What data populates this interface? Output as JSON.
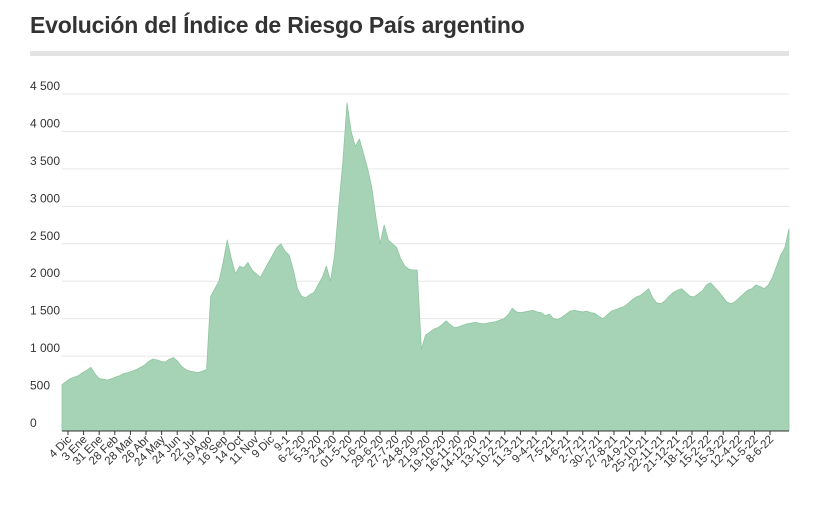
{
  "title": "Evolución del Índice de Riesgo País argentino",
  "colors": {
    "area": "#a6d3b5",
    "stroke": "#8fc5a1",
    "grid": "#e6e6e6",
    "axis": "#333333",
    "text": "#333333",
    "rule": "#e3e3e3"
  },
  "chart_data": {
    "type": "area",
    "title": "Evolución del Índice de Riesgo País argentino",
    "xlabel": "",
    "ylabel": "",
    "ylim": [
      0,
      4500
    ],
    "grid": true,
    "y_ticks": [
      0,
      500,
      1000,
      1500,
      2000,
      2500,
      3000,
      3500,
      4000,
      4500
    ],
    "y_tick_labels": [
      "0",
      "500",
      "1 000",
      "1 500",
      "2 000",
      "2 500",
      "3 000",
      "3 500",
      "4 000",
      "4 500"
    ],
    "x_tick_labels": [
      "4 Dic",
      "3 Ene",
      "31 Ene",
      "28 Feb",
      "28 Mar",
      "26 Abr",
      "24 May",
      "24 Jun",
      "22 Jul",
      "19 Ago",
      "16 Sep",
      "14 Oct",
      "11 Nov",
      "9 Dic",
      "9-1",
      "6-2-20",
      "5-3-20",
      "2-4-20",
      "01-5-20",
      "1-6-20",
      "29-6-20",
      "27-7-20",
      "24-8-20",
      "21-9-20",
      "19-10-20",
      "16-11-20",
      "14-12-20",
      "13-1-21",
      "10-2-21",
      "11-3-21",
      "9-4-21",
      "7-5-21",
      "4-6-21",
      "2-7-21",
      "30-7-21",
      "27-8-21",
      "24-9-21",
      "25-10-21",
      "22-11-21",
      "21-12-21",
      "18-1-22",
      "15-2-22",
      "15-3-22",
      "12-4-22",
      "11-5-22",
      "8-6-22"
    ],
    "series": [
      {
        "values": [
          620,
          660,
          700,
          720,
          740,
          780,
          810,
          850,
          760,
          700,
          690,
          680,
          700,
          720,
          740,
          770,
          780,
          800,
          820,
          850,
          880,
          930,
          960,
          950,
          930,
          920,
          960,
          980,
          930,
          860,
          820,
          800,
          790,
          780,
          800,
          820,
          1800,
          1900,
          2000,
          2250,
          2550,
          2300,
          2100,
          2200,
          2180,
          2250,
          2150,
          2100,
          2050,
          2150,
          2250,
          2350,
          2450,
          2500,
          2400,
          2350,
          2150,
          1900,
          1800,
          1780,
          1820,
          1850,
          1950,
          2050,
          2200,
          2000,
          2350,
          3000,
          3600,
          4380,
          4000,
          3800,
          3900,
          3700,
          3500,
          3250,
          2850,
          2500,
          2750,
          2550,
          2500,
          2450,
          2300,
          2200,
          2160,
          2150,
          2150,
          1090,
          1280,
          1320,
          1360,
          1380,
          1420,
          1470,
          1420,
          1380,
          1390,
          1410,
          1430,
          1440,
          1450,
          1440,
          1430,
          1440,
          1450,
          1460,
          1480,
          1500,
          1550,
          1640,
          1590,
          1580,
          1590,
          1600,
          1610,
          1590,
          1580,
          1540,
          1560,
          1500,
          1490,
          1520,
          1560,
          1600,
          1610,
          1600,
          1590,
          1600,
          1580,
          1570,
          1530,
          1500,
          1550,
          1600,
          1620,
          1640,
          1660,
          1700,
          1750,
          1790,
          1810,
          1850,
          1900,
          1780,
          1710,
          1700,
          1740,
          1800,
          1850,
          1880,
          1900,
          1850,
          1800,
          1790,
          1830,
          1870,
          1950,
          1980,
          1920,
          1860,
          1790,
          1720,
          1700,
          1730,
          1780,
          1830,
          1880,
          1900,
          1950,
          1930,
          1900,
          1950,
          2050,
          2200,
          2350,
          2450,
          2700
        ]
      }
    ]
  }
}
